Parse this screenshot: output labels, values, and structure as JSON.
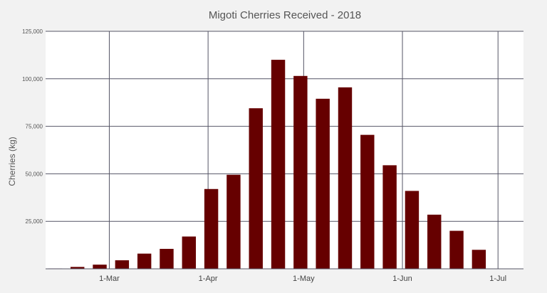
{
  "chart_data": {
    "type": "bar",
    "title": "Migoti Cherries Received - 2018",
    "xlabel": "",
    "ylabel": "Cherries (kg)",
    "ylim": [
      0,
      125000
    ],
    "yticks": [
      {
        "value": 0,
        "label": ""
      },
      {
        "value": 25000,
        "label": "25,000"
      },
      {
        "value": 50000,
        "label": "50,000"
      },
      {
        "value": 75000,
        "label": "75,000"
      },
      {
        "value": 100000,
        "label": "100,000"
      },
      {
        "value": 125000,
        "label": "125,000"
      }
    ],
    "xticks": [
      "1-Mar",
      "1-Apr",
      "1-May",
      "1-Jun",
      "1-Jul"
    ],
    "x": [
      "2018-02-12",
      "2018-02-19",
      "2018-02-26",
      "2018-03-05",
      "2018-03-12",
      "2018-03-19",
      "2018-03-26",
      "2018-04-02",
      "2018-04-09",
      "2018-04-16",
      "2018-04-23",
      "2018-04-30",
      "2018-05-07",
      "2018-05-14",
      "2018-05-21",
      "2018-05-28",
      "2018-06-04",
      "2018-06-11",
      "2018-06-18",
      "2018-06-25"
    ],
    "values": [
      200,
      1000,
      2200,
      4500,
      8000,
      10500,
      17000,
      42000,
      49500,
      84500,
      110000,
      101500,
      89500,
      95500,
      70500,
      54500,
      41000,
      28500,
      20000,
      10000
    ],
    "bar_color": "#660000",
    "grid": true,
    "legend": "none"
  }
}
